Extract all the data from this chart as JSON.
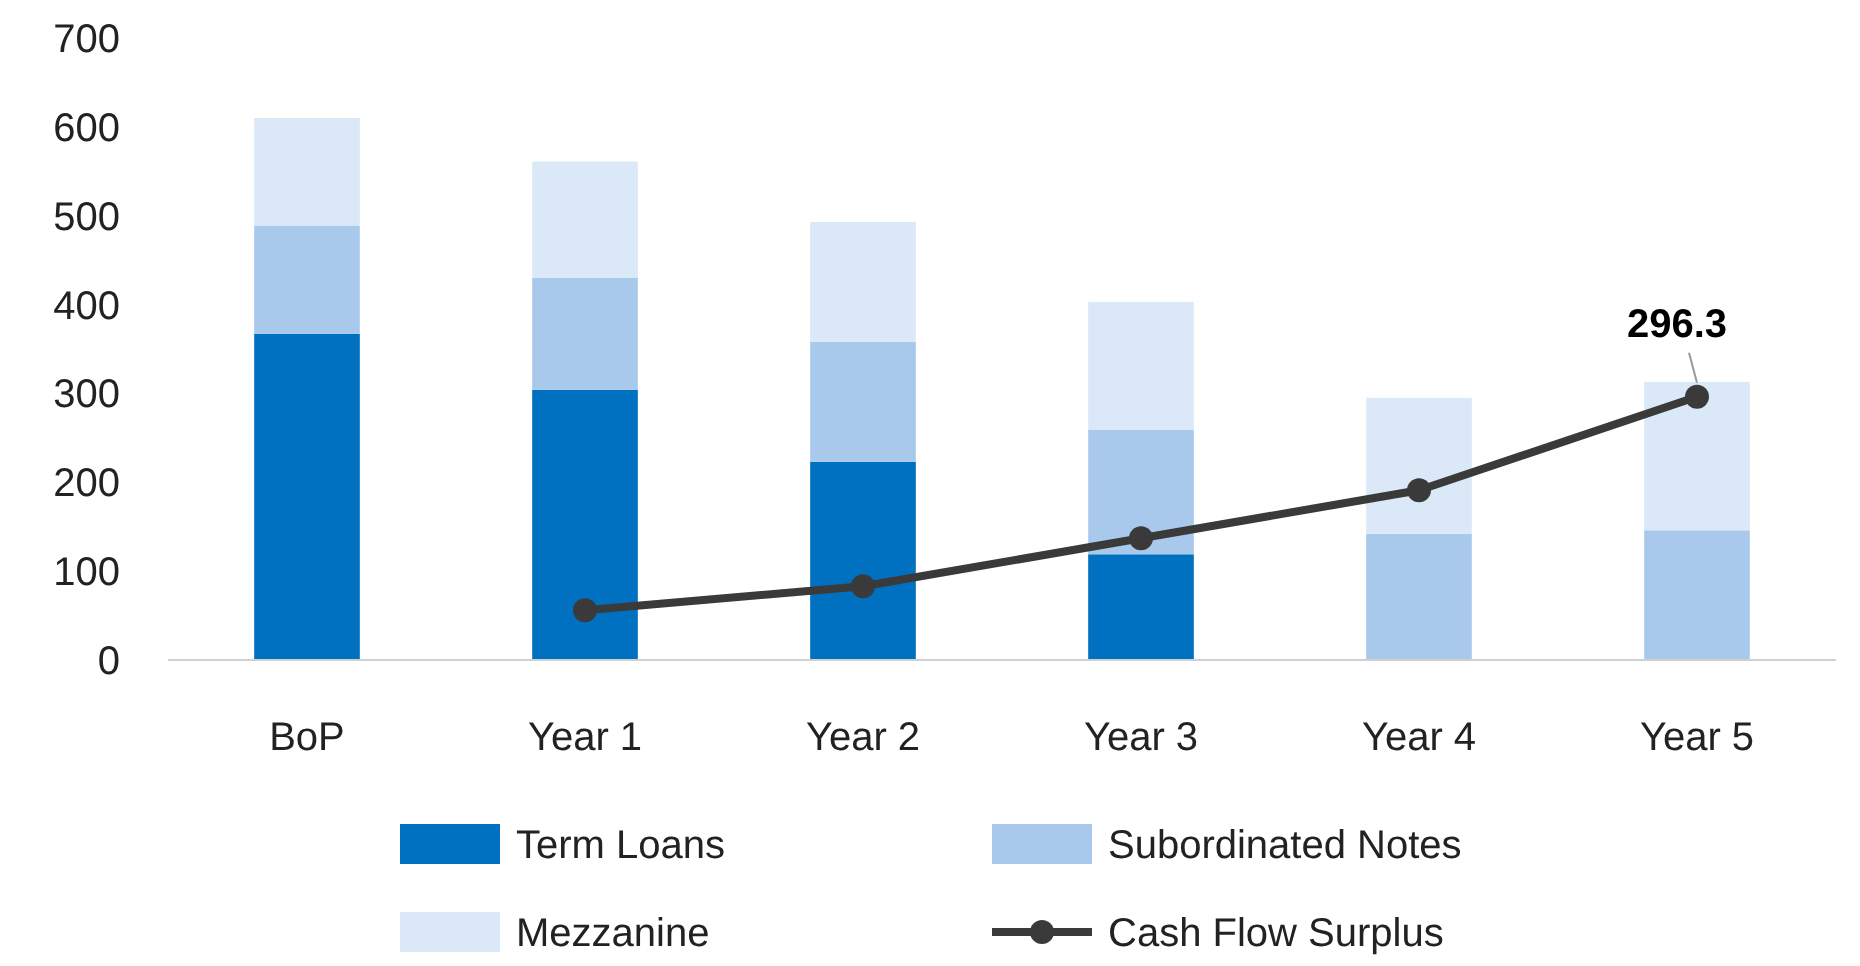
{
  "chart_data": {
    "type": "bar",
    "stacked": true,
    "categories": [
      "BoP",
      "Year 1",
      "Year 2",
      "Year 3",
      "Year 4",
      "Year 5"
    ],
    "ylim": [
      0,
      700
    ],
    "yticks": [
      0,
      100,
      200,
      300,
      400,
      500,
      600,
      700
    ],
    "grid": false,
    "legend": "bottom",
    "series": [
      {
        "name": "Term Loans",
        "color": "#0070c0",
        "values": [
          367,
          304,
          223,
          119,
          0,
          0
        ]
      },
      {
        "name": "Subordinated Notes",
        "color": "#a9c9ec",
        "values": [
          122,
          126,
          135,
          140,
          142,
          146
        ]
      },
      {
        "name": "Mezzanine",
        "color": "#dae8f7",
        "values": [
          121,
          131,
          135,
          144,
          153,
          167
        ]
      },
      {
        "name": "Cash Flow Surplus",
        "type": "line",
        "color": "#3a3a3a",
        "marker": "circle",
        "values": [
          null,
          56,
          83,
          137,
          191,
          296.3
        ],
        "value_labels": [
          null,
          null,
          null,
          null,
          null,
          "296.3"
        ]
      }
    ]
  }
}
